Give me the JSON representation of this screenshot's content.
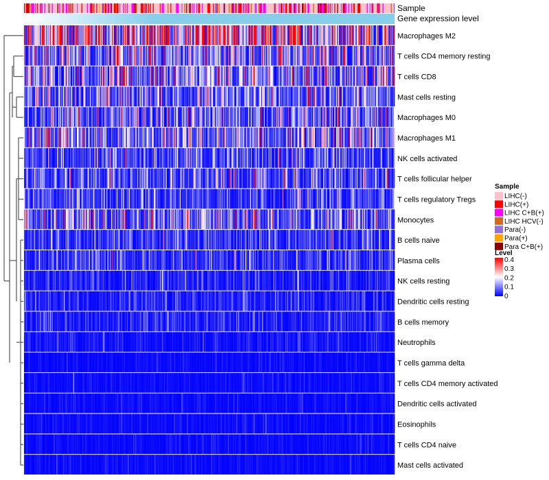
{
  "chart_data": {
    "type": "heatmap",
    "title": "",
    "annotation_labels": [
      "Sample",
      "Gene expression level"
    ],
    "rows": [
      {
        "name": "Macrophages M2",
        "mean": 0.27
      },
      {
        "name": "T cells CD4 memory resting",
        "mean": 0.13
      },
      {
        "name": "T cells CD8",
        "mean": 0.13
      },
      {
        "name": "Mast cells resting",
        "mean": 0.1
      },
      {
        "name": "Macrophages M0",
        "mean": 0.09
      },
      {
        "name": "Macrophages M1",
        "mean": 0.1
      },
      {
        "name": "NK cells activated",
        "mean": 0.07
      },
      {
        "name": "T cells follicular helper",
        "mean": 0.07
      },
      {
        "name": "T cells regulatory  Tregs",
        "mean": 0.06
      },
      {
        "name": "Monocytes",
        "mean": 0.11
      },
      {
        "name": "B cells naive",
        "mean": 0.05
      },
      {
        "name": "Plasma cells",
        "mean": 0.05
      },
      {
        "name": "NK cells resting",
        "mean": 0.03
      },
      {
        "name": "Dendritic cells resting",
        "mean": 0.03
      },
      {
        "name": "B cells memory",
        "mean": 0.03
      },
      {
        "name": "Neutrophils",
        "mean": 0.02
      },
      {
        "name": "T cells gamma delta",
        "mean": 0.01
      },
      {
        "name": "T cells CD4 memory activated",
        "mean": 0.01
      },
      {
        "name": "Dendritic cells activated",
        "mean": 0.01
      },
      {
        "name": "Eosinophils",
        "mean": 0.01
      },
      {
        "name": "T cells CD4 naive",
        "mean": 0.01
      },
      {
        "name": "Mast cells activated",
        "mean": 0.01
      }
    ],
    "n_samples": 400,
    "color_scale": {
      "min": 0,
      "mid": 0.2,
      "max": 0.4,
      "low": "#0000FF",
      "midColor": "#FFFFFF",
      "high": "#FF0000"
    },
    "legend": {
      "sample_title": "Sample",
      "samples": [
        {
          "label": "LIHC(-)",
          "color": "#FFC0CB",
          "weight": 0.55
        },
        {
          "label": "LIHC(+)",
          "color": "#FF0000",
          "weight": 0.15
        },
        {
          "label": "LIHC C+B(+)",
          "color": "#FF00FF",
          "weight": 0.15
        },
        {
          "label": "LIHC HCV(-)",
          "color": "#D2691E",
          "weight": 0.05
        },
        {
          "label": "Para(-)",
          "color": "#9370DB",
          "weight": 0.05
        },
        {
          "label": "Para(+)",
          "color": "#FFA500",
          "weight": 0.02
        },
        {
          "label": "Para C+B(+)",
          "color": "#8B0000",
          "weight": 0.03
        }
      ],
      "level_title": "Level",
      "level_ticks": [
        "0.4",
        "0.3",
        "0.2",
        "0.1",
        "0"
      ],
      "placement": "right"
    },
    "gene_expression_gradient": [
      "#FFFFFF",
      "#87CEEB"
    ]
  }
}
